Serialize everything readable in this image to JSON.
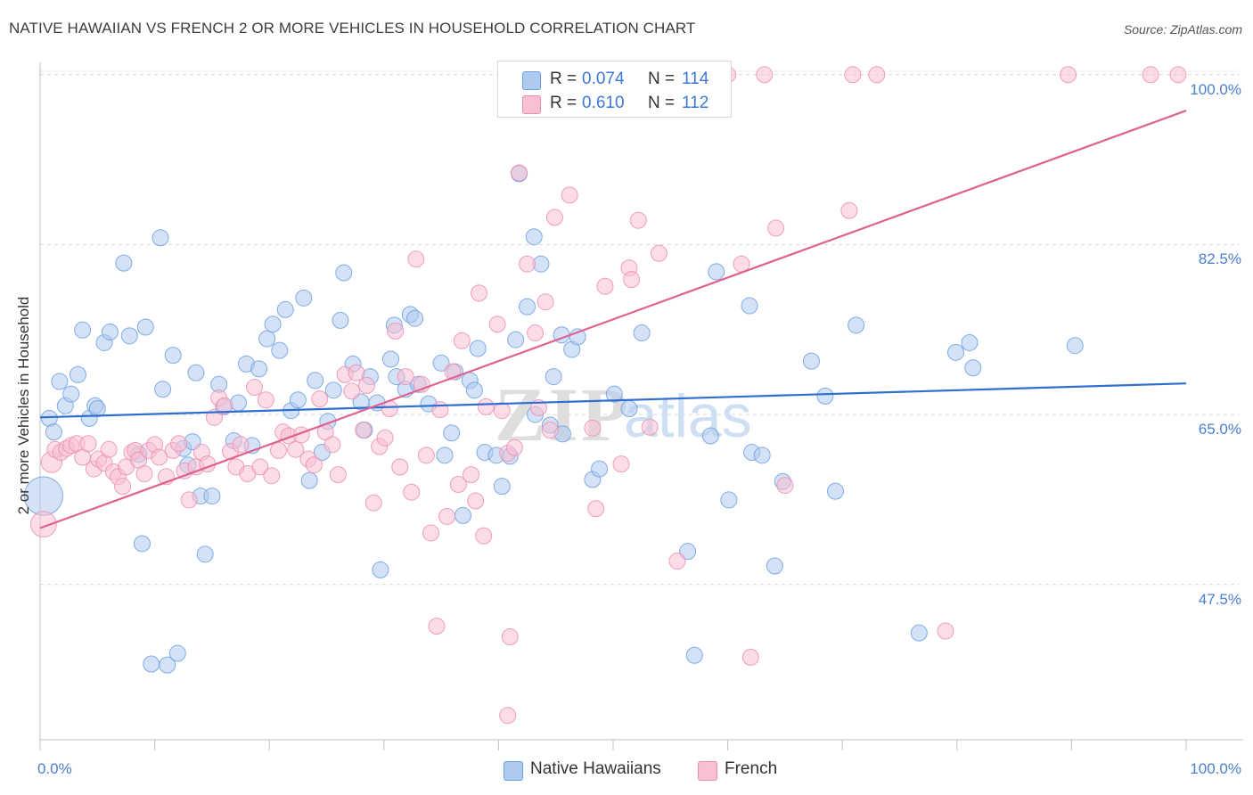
{
  "title": "NATIVE HAWAIIAN VS FRENCH 2 OR MORE VEHICLES IN HOUSEHOLD CORRELATION CHART",
  "source": "Source: ZipAtlas.com",
  "watermark": {
    "zip": "ZIP",
    "atlas": "atlas"
  },
  "stats": [
    {
      "swatch_fill": "#aecbef",
      "swatch_stroke": "#6f9fe0",
      "r_label": "R =",
      "r_value": "0.074",
      "n_label": "N =",
      "n_value": "114"
    },
    {
      "swatch_fill": "#f8c0d3",
      "swatch_stroke": "#eb8fb0",
      "r_label": "R =",
      "r_value": "0.610",
      "n_label": "N =",
      "n_value": "112"
    }
  ],
  "legend": [
    {
      "label": "Native Hawaiians",
      "fill": "#aecbef",
      "stroke": "#6f9fe0"
    },
    {
      "label": "French",
      "fill": "#f8c0d3",
      "stroke": "#eb8fb0"
    }
  ],
  "chart_data": {
    "type": "scatter",
    "title": "NATIVE HAWAIIAN VS FRENCH 2 OR MORE VEHICLES IN HOUSEHOLD CORRELATION CHART",
    "xlabel": "",
    "ylabel": "2 or more Vehicles in Household",
    "xlim": [
      0,
      100
    ],
    "ylim": [
      31.5,
      102
    ],
    "x_tick_labels": [
      {
        "value": 0,
        "label": "0.0%"
      },
      {
        "value": 100,
        "label": "100.0%"
      }
    ],
    "y_tick_labels": [
      {
        "value": 100,
        "label": "100.0%"
      },
      {
        "value": 82.5,
        "label": "82.5%"
      },
      {
        "value": 65,
        "label": "65.0%"
      },
      {
        "value": 47.5,
        "label": "47.5%"
      }
    ],
    "grid": true,
    "legend_position": "bottom-center",
    "series": [
      {
        "name": "Native Hawaiians",
        "color": "#6f9fe0",
        "fill": "#aecbef",
        "trend": {
          "x": [
            0,
            100
          ],
          "y": [
            64.7,
            68.2
          ],
          "color": "#2f6fcf"
        },
        "points": [
          [
            0.3,
            56.6,
            2.4
          ],
          [
            0.8,
            64.6,
            1
          ],
          [
            1.2,
            63.2,
            1
          ],
          [
            1.7,
            68.4,
            1
          ],
          [
            2.2,
            65.9,
            1
          ],
          [
            2.7,
            67.1,
            1
          ],
          [
            3.3,
            69.1,
            1
          ],
          [
            3.7,
            73.7,
            1
          ],
          [
            4.3,
            64.6,
            1
          ],
          [
            4.8,
            65.9,
            1
          ],
          [
            5.0,
            65.6,
            1
          ],
          [
            5.6,
            72.4,
            1
          ],
          [
            6.1,
            73.5,
            1
          ],
          [
            7.3,
            80.6,
            1
          ],
          [
            7.8,
            73.1,
            1
          ],
          [
            8.6,
            60.9,
            1
          ],
          [
            8.9,
            51.7,
            1
          ],
          [
            9.2,
            74.0,
            1
          ],
          [
            9.7,
            39.3,
            1
          ],
          [
            10.5,
            83.2,
            1
          ],
          [
            10.7,
            67.6,
            1
          ],
          [
            11.1,
            39.2,
            1
          ],
          [
            11.6,
            71.1,
            1
          ],
          [
            12.0,
            40.4,
            1
          ],
          [
            12.5,
            61.5,
            1
          ],
          [
            12.9,
            59.8,
            1
          ],
          [
            13.3,
            62.2,
            1
          ],
          [
            13.6,
            69.3,
            1
          ],
          [
            14.0,
            56.6,
            1
          ],
          [
            14.4,
            50.6,
            1
          ],
          [
            15.0,
            56.6,
            1
          ],
          [
            15.6,
            68.1,
            1
          ],
          [
            16.0,
            65.8,
            1
          ],
          [
            16.9,
            62.3,
            1
          ],
          [
            17.3,
            66.2,
            1
          ],
          [
            18.0,
            70.2,
            1
          ],
          [
            18.5,
            61.8,
            1
          ],
          [
            19.1,
            69.7,
            1
          ],
          [
            19.8,
            72.8,
            1
          ],
          [
            20.3,
            74.3,
            1
          ],
          [
            20.9,
            71.6,
            1
          ],
          [
            21.4,
            75.8,
            1
          ],
          [
            21.9,
            65.4,
            1
          ],
          [
            22.5,
            66.5,
            1
          ],
          [
            23.0,
            77.0,
            1
          ],
          [
            23.5,
            58.2,
            1
          ],
          [
            24.0,
            68.5,
            1
          ],
          [
            24.6,
            61.1,
            1
          ],
          [
            25.1,
            64.3,
            1
          ],
          [
            25.6,
            67.5,
            1
          ],
          [
            26.2,
            74.7,
            1
          ],
          [
            26.5,
            79.6,
            1
          ],
          [
            27.3,
            70.2,
            1
          ],
          [
            28.0,
            66.3,
            1
          ],
          [
            28.3,
            63.4,
            1
          ],
          [
            28.8,
            68.9,
            1
          ],
          [
            29.4,
            66.2,
            1
          ],
          [
            29.7,
            49.0,
            1
          ],
          [
            30.6,
            70.7,
            1
          ],
          [
            30.9,
            74.2,
            1
          ],
          [
            31.1,
            68.9,
            1
          ],
          [
            31.9,
            67.6,
            1
          ],
          [
            32.3,
            75.3,
            1
          ],
          [
            32.7,
            74.9,
            1
          ],
          [
            33.0,
            68.1,
            1
          ],
          [
            33.9,
            66.1,
            1
          ],
          [
            35.0,
            70.3,
            1
          ],
          [
            35.3,
            60.8,
            1
          ],
          [
            35.9,
            63.1,
            1
          ],
          [
            36.2,
            69.4,
            1
          ],
          [
            36.9,
            54.6,
            1
          ],
          [
            37.5,
            68.5,
            1
          ],
          [
            37.9,
            67.5,
            1
          ],
          [
            38.2,
            71.8,
            1
          ],
          [
            38.8,
            61.1,
            1
          ],
          [
            39.8,
            60.8,
            1
          ],
          [
            40.3,
            57.6,
            1
          ],
          [
            41.0,
            60.7,
            1
          ],
          [
            41.5,
            72.7,
            1
          ],
          [
            41.8,
            89.8,
            1
          ],
          [
            42.5,
            76.1,
            1
          ],
          [
            43.1,
            83.3,
            1
          ],
          [
            43.2,
            65.0,
            1
          ],
          [
            43.7,
            80.5,
            1
          ],
          [
            44.5,
            63.9,
            1
          ],
          [
            44.8,
            68.9,
            1
          ],
          [
            45.5,
            73.2,
            1
          ],
          [
            45.6,
            63.0,
            1
          ],
          [
            46.4,
            71.7,
            1
          ],
          [
            46.9,
            73.0,
            1
          ],
          [
            48.2,
            58.3,
            1
          ],
          [
            48.8,
            59.4,
            1
          ],
          [
            50.1,
            67.1,
            1
          ],
          [
            51.4,
            65.6,
            1
          ],
          [
            52.5,
            73.4,
            1
          ],
          [
            57.1,
            40.2,
            1
          ],
          [
            56.5,
            50.9,
            1
          ],
          [
            56.9,
            96.8,
            1
          ],
          [
            58.5,
            62.8,
            1
          ],
          [
            59.0,
            79.7,
            1
          ],
          [
            60.1,
            56.2,
            1
          ],
          [
            61.9,
            76.2,
            1
          ],
          [
            62.1,
            61.1,
            1
          ],
          [
            63.0,
            60.8,
            1
          ],
          [
            64.1,
            49.4,
            1
          ],
          [
            64.8,
            58.1,
            1
          ],
          [
            67.3,
            70.5,
            1
          ],
          [
            68.5,
            66.9,
            1
          ],
          [
            69.4,
            57.1,
            1
          ],
          [
            71.2,
            74.2,
            1
          ],
          [
            76.7,
            42.5,
            1
          ],
          [
            79.9,
            71.4,
            1
          ],
          [
            81.4,
            69.8,
            1
          ],
          [
            81.1,
            72.4,
            1
          ],
          [
            90.3,
            72.1,
            1
          ]
        ]
      },
      {
        "name": "French",
        "color": "#eb8fb0",
        "fill": "#f8c0d3",
        "trend": {
          "x": [
            0,
            100
          ],
          "y": [
            53.3,
            96.3
          ],
          "color": "#e0608f"
        },
        "points": [
          [
            0.3,
            53.7,
            1.6
          ],
          [
            1.0,
            60.1,
            1.3
          ],
          [
            1.3,
            61.4,
            1
          ],
          [
            1.8,
            61.1,
            1
          ],
          [
            2.3,
            61.5,
            1
          ],
          [
            2.7,
            61.8,
            1
          ],
          [
            3.2,
            62.0,
            1
          ],
          [
            3.7,
            60.6,
            1
          ],
          [
            4.2,
            62.0,
            1
          ],
          [
            4.7,
            59.4,
            1
          ],
          [
            5.1,
            60.4,
            1
          ],
          [
            5.6,
            60.0,
            1
          ],
          [
            6.0,
            61.4,
            1
          ],
          [
            6.4,
            59.1,
            1
          ],
          [
            6.8,
            58.6,
            1
          ],
          [
            7.2,
            57.6,
            1
          ],
          [
            7.5,
            59.6,
            1
          ],
          [
            8.0,
            61.1,
            1
          ],
          [
            8.3,
            61.3,
            1
          ],
          [
            8.6,
            60.3,
            1
          ],
          [
            9.1,
            58.9,
            1
          ],
          [
            9.5,
            61.3,
            1
          ],
          [
            10.0,
            61.9,
            1
          ],
          [
            10.4,
            60.6,
            1
          ],
          [
            11.0,
            58.6,
            1
          ],
          [
            11.6,
            61.3,
            1
          ],
          [
            12.1,
            62.0,
            1
          ],
          [
            12.6,
            59.2,
            1
          ],
          [
            13.0,
            56.2,
            1
          ],
          [
            13.6,
            59.6,
            1
          ],
          [
            14.1,
            61.1,
            1
          ],
          [
            14.6,
            59.9,
            1
          ],
          [
            15.2,
            64.7,
            1
          ],
          [
            15.6,
            66.7,
            1
          ],
          [
            16.1,
            65.9,
            1
          ],
          [
            16.6,
            61.2,
            1
          ],
          [
            17.1,
            59.6,
            1
          ],
          [
            17.5,
            61.9,
            1
          ],
          [
            18.1,
            58.9,
            1
          ],
          [
            18.7,
            67.8,
            1
          ],
          [
            19.2,
            59.6,
            1
          ],
          [
            19.7,
            66.5,
            1
          ],
          [
            20.2,
            58.7,
            1
          ],
          [
            20.8,
            61.3,
            1
          ],
          [
            21.2,
            63.2,
            1
          ],
          [
            21.7,
            62.8,
            1
          ],
          [
            22.3,
            61.4,
            1
          ],
          [
            22.8,
            62.9,
            1
          ],
          [
            23.4,
            60.4,
            1
          ],
          [
            23.9,
            59.8,
            1
          ],
          [
            24.4,
            66.6,
            1
          ],
          [
            24.9,
            63.2,
            1
          ],
          [
            25.5,
            61.9,
            1
          ],
          [
            26.0,
            58.8,
            1
          ],
          [
            26.6,
            69.1,
            1
          ],
          [
            27.2,
            67.4,
            1
          ],
          [
            27.6,
            69.3,
            1
          ],
          [
            28.2,
            63.4,
            1
          ],
          [
            28.5,
            68.0,
            1
          ],
          [
            29.1,
            55.9,
            1
          ],
          [
            29.6,
            61.7,
            1
          ],
          [
            30.1,
            62.6,
            1
          ],
          [
            30.5,
            65.6,
            1
          ],
          [
            31.0,
            73.6,
            1
          ],
          [
            31.4,
            59.6,
            1
          ],
          [
            31.9,
            68.9,
            1
          ],
          [
            32.4,
            57.0,
            1
          ],
          [
            32.8,
            81.0,
            1
          ],
          [
            33.3,
            68.1,
            1
          ],
          [
            33.7,
            60.8,
            1
          ],
          [
            34.1,
            52.8,
            1
          ],
          [
            34.6,
            43.2,
            1
          ],
          [
            34.9,
            65.5,
            1
          ],
          [
            35.5,
            54.5,
            1
          ],
          [
            36.0,
            69.4,
            1
          ],
          [
            36.5,
            57.8,
            1
          ],
          [
            36.8,
            72.6,
            1
          ],
          [
            37.6,
            58.8,
            1
          ],
          [
            38.0,
            56.1,
            1
          ],
          [
            38.3,
            77.5,
            1
          ],
          [
            38.7,
            52.5,
            1
          ],
          [
            38.9,
            65.8,
            1
          ],
          [
            39.9,
            74.3,
            1
          ],
          [
            40.3,
            65.4,
            1
          ],
          [
            40.8,
            61.0,
            1
          ],
          [
            41.4,
            61.6,
            1
          ],
          [
            41.8,
            89.9,
            1
          ],
          [
            42.5,
            80.5,
            1
          ],
          [
            43.2,
            73.4,
            1
          ],
          [
            43.5,
            65.7,
            1
          ],
          [
            44.1,
            76.6,
            1
          ],
          [
            44.5,
            63.4,
            1
          ],
          [
            44.9,
            85.3,
            1
          ],
          [
            46.2,
            87.6,
            1
          ],
          [
            48.2,
            63.6,
            1
          ],
          [
            48.5,
            55.3,
            1
          ],
          [
            49.3,
            78.2,
            1
          ],
          [
            50.7,
            59.9,
            1
          ],
          [
            51.4,
            80.1,
            1
          ],
          [
            51.6,
            78.9,
            1
          ],
          [
            52.2,
            85.0,
            1
          ],
          [
            53.2,
            63.7,
            1
          ],
          [
            54.0,
            81.6,
            1
          ],
          [
            55.6,
            49.9,
            1
          ],
          [
            60.0,
            100.0,
            1
          ],
          [
            61.2,
            80.5,
            1
          ],
          [
            62.0,
            40.0,
            1
          ],
          [
            63.2,
            100.0,
            1
          ],
          [
            64.2,
            84.2,
            1
          ],
          [
            65.0,
            57.7,
            1
          ],
          [
            70.6,
            86.0,
            1
          ],
          [
            70.9,
            100.0,
            1
          ],
          [
            73.0,
            100.0,
            1
          ],
          [
            79.0,
            42.7,
            1
          ],
          [
            89.7,
            100.0,
            1
          ],
          [
            96.9,
            100.0,
            1
          ],
          [
            99.3,
            100.0,
            1
          ],
          [
            40.8,
            34.0,
            1
          ],
          [
            41.0,
            42.1,
            1
          ]
        ]
      }
    ]
  }
}
